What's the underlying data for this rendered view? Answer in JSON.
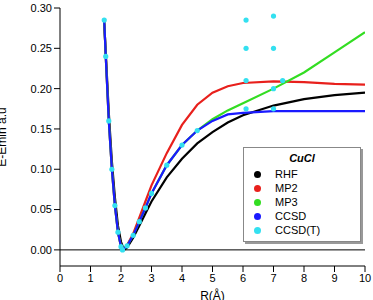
{
  "chart_data": {
    "type": "line",
    "title": "CuCl",
    "x_label": "R(Å)",
    "y_label": "E-Emin  a.u",
    "xlim": [
      0,
      10
    ],
    "xticks": [
      0,
      1,
      2,
      3,
      4,
      5,
      6,
      7,
      8,
      9,
      10
    ],
    "ylim": [
      -0.02,
      0.3
    ],
    "yticks": [
      {
        "value": 0,
        "label": "0.00"
      },
      {
        "value": 0.05,
        "label": "0.05"
      },
      {
        "value": 0.1,
        "label": "0.10"
      },
      {
        "value": 0.15,
        "label": "0.15"
      },
      {
        "value": 0.2,
        "label": "0.20"
      },
      {
        "value": 0.25,
        "label": "0.25"
      },
      {
        "value": 0.3,
        "label": "0.30"
      }
    ],
    "hline": 0,
    "grid": false,
    "legend": "lower right",
    "series": [
      {
        "name": "RHF",
        "color": "#000000",
        "line_style": "solid",
        "marker": "none",
        "x": [
          1.45,
          1.5,
          1.6,
          1.7,
          1.8,
          1.9,
          2.0,
          2.1,
          2.2,
          2.4,
          2.6,
          2.8,
          3.0,
          3.5,
          4.0,
          4.5,
          5.0,
          5.5,
          6.0,
          7.0,
          8.0,
          9.0,
          10.0
        ],
        "values": [
          0.28,
          0.245,
          0.17,
          0.11,
          0.065,
          0.03,
          0.01,
          0.0,
          0.003,
          0.015,
          0.03,
          0.045,
          0.06,
          0.09,
          0.113,
          0.132,
          0.146,
          0.158,
          0.167,
          0.179,
          0.187,
          0.192,
          0.195
        ]
      },
      {
        "name": "MP2",
        "color": "#e8201c",
        "line_style": "solid",
        "marker": "none",
        "x": [
          1.45,
          1.5,
          1.6,
          1.7,
          1.8,
          1.9,
          2.0,
          2.05,
          2.2,
          2.4,
          2.6,
          2.8,
          3.0,
          3.5,
          4.0,
          4.5,
          5.0,
          5.5,
          6.0,
          7.0,
          8.0,
          9.0,
          10.0
        ],
        "values": [
          0.285,
          0.24,
          0.16,
          0.1,
          0.055,
          0.022,
          0.004,
          0.0,
          0.006,
          0.02,
          0.04,
          0.06,
          0.08,
          0.12,
          0.155,
          0.18,
          0.195,
          0.203,
          0.207,
          0.209,
          0.208,
          0.206,
          0.205
        ]
      },
      {
        "name": "MP3",
        "color": "#33dd22",
        "line_style": "solid",
        "marker": "none",
        "x": [
          1.45,
          1.5,
          1.6,
          1.7,
          1.8,
          1.9,
          2.0,
          2.05,
          2.2,
          2.4,
          2.6,
          2.8,
          3.0,
          3.5,
          4.0,
          4.5,
          5.0,
          5.5,
          6.0,
          7.0,
          8.0,
          9.0,
          10.0
        ],
        "values": [
          0.285,
          0.24,
          0.16,
          0.1,
          0.055,
          0.022,
          0.004,
          0.0,
          0.005,
          0.018,
          0.035,
          0.052,
          0.07,
          0.105,
          0.13,
          0.148,
          0.162,
          0.173,
          0.182,
          0.2,
          0.22,
          0.245,
          0.27
        ]
      },
      {
        "name": "CCSD",
        "color": "#1a1aff",
        "line_style": "solid",
        "marker": "none",
        "x": [
          1.45,
          1.5,
          1.6,
          1.7,
          1.8,
          1.9,
          2.0,
          2.05,
          2.2,
          2.4,
          2.6,
          2.8,
          3.0,
          3.5,
          4.0,
          4.5,
          5.0,
          5.5,
          6.0,
          7.0,
          8.0,
          9.0,
          10.0
        ],
        "values": [
          0.285,
          0.24,
          0.16,
          0.1,
          0.055,
          0.022,
          0.004,
          0.0,
          0.005,
          0.018,
          0.035,
          0.052,
          0.07,
          0.105,
          0.13,
          0.148,
          0.16,
          0.168,
          0.17,
          0.172,
          0.172,
          0.172,
          0.172
        ]
      },
      {
        "name": "CCSD(T)",
        "color": "#33e0f0",
        "line_style": "none",
        "marker": "circle",
        "x": [
          1.45,
          1.5,
          1.6,
          1.7,
          1.8,
          1.9,
          2.0,
          2.05,
          2.2,
          2.4,
          2.6,
          2.8,
          3.0,
          3.5,
          4.0,
          4.5,
          6.1,
          6.1,
          6.1,
          6.1,
          7.0,
          7.0,
          7.0,
          7.0,
          7.3
        ],
        "values": [
          0.285,
          0.24,
          0.16,
          0.1,
          0.055,
          0.022,
          0.004,
          0.0,
          0.005,
          0.018,
          0.035,
          0.052,
          0.07,
          0.105,
          0.13,
          0.148,
          0.285,
          0.25,
          0.21,
          0.175,
          0.29,
          0.25,
          0.2,
          0.175,
          0.21
        ]
      }
    ]
  }
}
